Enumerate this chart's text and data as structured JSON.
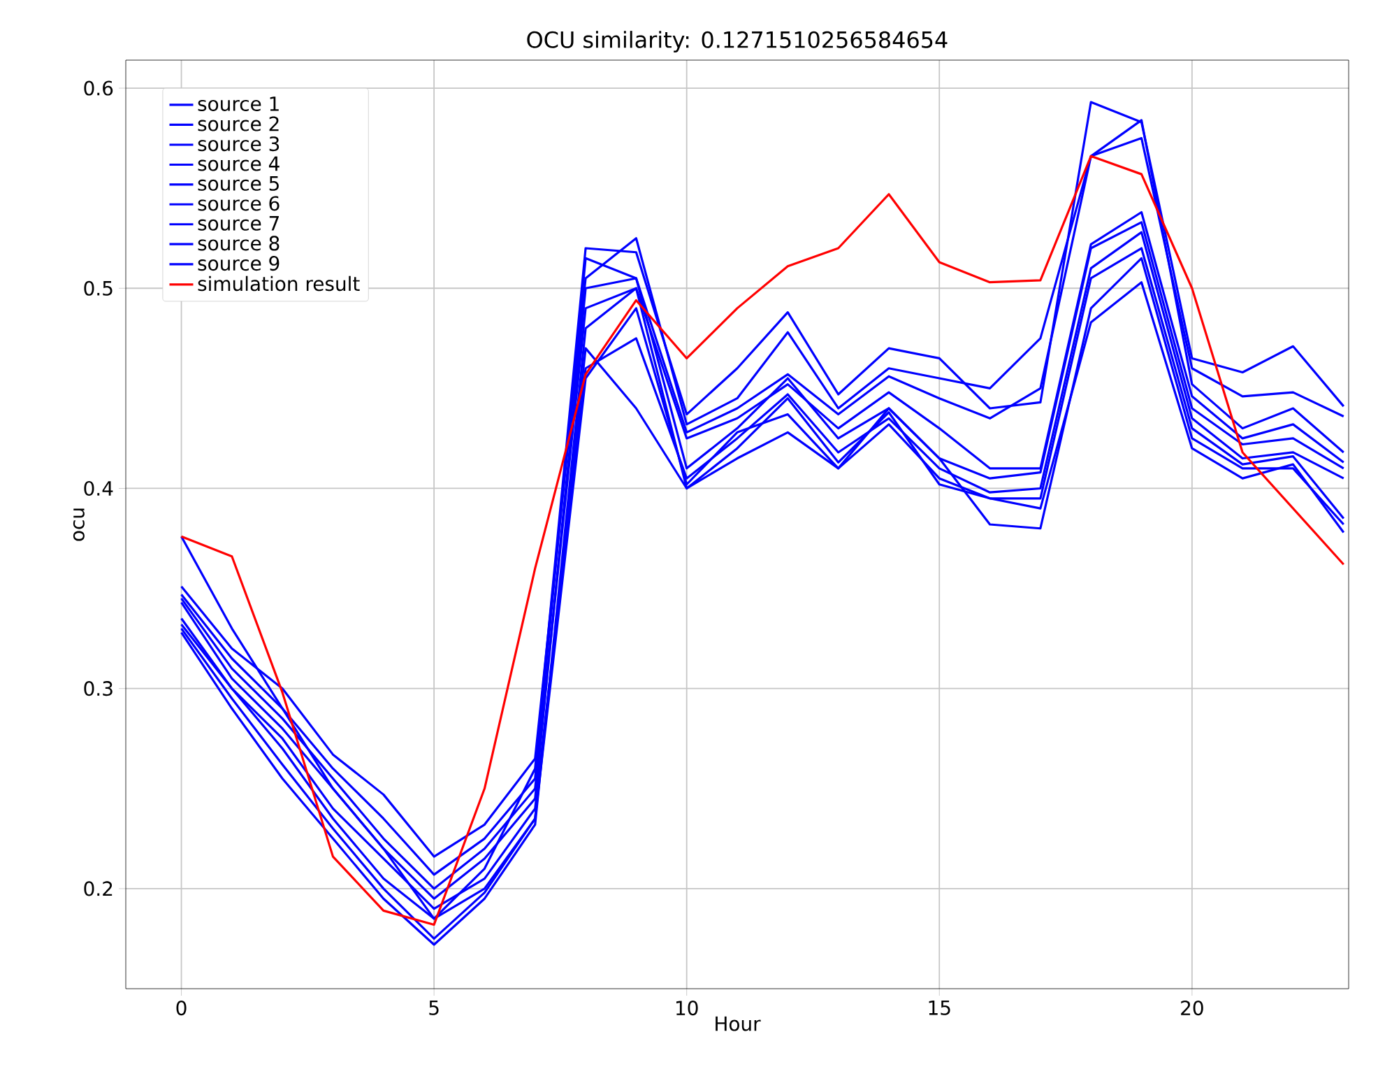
{
  "chart_data": {
    "type": "line",
    "title": "OCU similarity: 0.1271510256584654",
    "xlabel": "Hour",
    "ylabel": "ocu",
    "x": [
      0,
      1,
      2,
      3,
      4,
      5,
      6,
      7,
      8,
      9,
      10,
      11,
      12,
      13,
      14,
      15,
      16,
      17,
      18,
      19,
      20,
      21,
      22,
      23
    ],
    "xlim": [
      -1.1,
      23.1
    ],
    "ylim": [
      0.15,
      0.614
    ],
    "xticks": [
      0,
      5,
      10,
      15,
      20
    ],
    "yticks": [
      0.2,
      0.3,
      0.4,
      0.5,
      0.6
    ],
    "grid": true,
    "legend": "top left",
    "series": [
      {
        "name": "source 1",
        "color": "#0000ff",
        "values": [
          0.376,
          0.33,
          0.29,
          0.25,
          0.22,
          0.185,
          0.21,
          0.26,
          0.52,
          0.518,
          0.437,
          0.46,
          0.488,
          0.447,
          0.47,
          0.465,
          0.44,
          0.443,
          0.593,
          0.583,
          0.465,
          0.458,
          0.471,
          0.441
        ]
      },
      {
        "name": "source 2",
        "color": "#0000ff",
        "values": [
          0.351,
          0.32,
          0.3,
          0.267,
          0.247,
          0.216,
          0.232,
          0.265,
          0.505,
          0.525,
          0.432,
          0.445,
          0.478,
          0.44,
          0.46,
          0.455,
          0.45,
          0.475,
          0.566,
          0.575,
          0.46,
          0.446,
          0.448,
          0.436
        ]
      },
      {
        "name": "source 3",
        "color": "#0000ff",
        "values": [
          0.347,
          0.315,
          0.29,
          0.26,
          0.235,
          0.207,
          0.225,
          0.255,
          0.515,
          0.505,
          0.428,
          0.44,
          0.457,
          0.437,
          0.456,
          0.445,
          0.435,
          0.45,
          0.566,
          0.584,
          0.452,
          0.43,
          0.44,
          0.418
        ]
      },
      {
        "name": "source 4",
        "color": "#0000ff",
        "values": [
          0.345,
          0.31,
          0.285,
          0.255,
          0.225,
          0.2,
          0.22,
          0.25,
          0.49,
          0.5,
          0.425,
          0.435,
          0.452,
          0.43,
          0.448,
          0.43,
          0.41,
          0.41,
          0.522,
          0.538,
          0.446,
          0.425,
          0.432,
          0.413
        ]
      },
      {
        "name": "source 5",
        "color": "#0000ff",
        "values": [
          0.343,
          0.305,
          0.28,
          0.25,
          0.22,
          0.195,
          0.215,
          0.245,
          0.5,
          0.505,
          0.41,
          0.43,
          0.455,
          0.425,
          0.44,
          0.415,
          0.405,
          0.408,
          0.52,
          0.533,
          0.44,
          0.422,
          0.425,
          0.41
        ]
      },
      {
        "name": "source 6",
        "color": "#0000ff",
        "values": [
          0.335,
          0.3,
          0.275,
          0.24,
          0.215,
          0.19,
          0.205,
          0.24,
          0.46,
          0.475,
          0.405,
          0.425,
          0.447,
          0.418,
          0.435,
          0.41,
          0.398,
          0.4,
          0.51,
          0.528,
          0.435,
          0.415,
          0.418,
          0.405
        ]
      },
      {
        "name": "source 7",
        "color": "#0000ff",
        "values": [
          0.332,
          0.3,
          0.27,
          0.235,
          0.205,
          0.185,
          0.2,
          0.235,
          0.47,
          0.44,
          0.4,
          0.42,
          0.445,
          0.413,
          0.438,
          0.402,
          0.395,
          0.395,
          0.505,
          0.52,
          0.43,
          0.412,
          0.416,
          0.385
        ]
      },
      {
        "name": "source 8",
        "color": "#0000ff",
        "values": [
          0.33,
          0.295,
          0.262,
          0.23,
          0.2,
          0.175,
          0.198,
          0.235,
          0.455,
          0.49,
          0.402,
          0.428,
          0.437,
          0.41,
          0.44,
          0.415,
          0.382,
          0.38,
          0.49,
          0.515,
          0.425,
          0.41,
          0.41,
          0.382
        ]
      },
      {
        "name": "source 9",
        "color": "#0000ff",
        "values": [
          0.328,
          0.29,
          0.255,
          0.225,
          0.195,
          0.172,
          0.195,
          0.232,
          0.48,
          0.5,
          0.4,
          0.415,
          0.428,
          0.41,
          0.432,
          0.405,
          0.395,
          0.39,
          0.483,
          0.503,
          0.42,
          0.405,
          0.412,
          0.378
        ]
      },
      {
        "name": "simulation result",
        "color": "#ff0000",
        "values": [
          0.376,
          0.366,
          0.298,
          0.216,
          0.189,
          0.182,
          0.25,
          0.36,
          0.457,
          0.494,
          0.465,
          0.49,
          0.511,
          0.52,
          0.547,
          0.513,
          0.503,
          0.504,
          0.566,
          0.557,
          0.5,
          0.418,
          0.39,
          0.362
        ]
      }
    ]
  }
}
